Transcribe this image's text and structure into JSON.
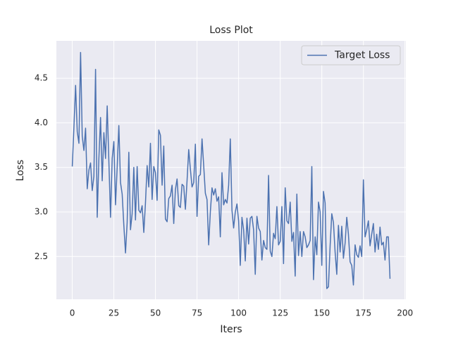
{
  "chart_data": {
    "type": "line",
    "title": "Loss Plot",
    "x_label": "Iters",
    "y_label": "Loss",
    "series": [
      {
        "name": "Target Loss",
        "color": "#4c72b0",
        "values": [
          3.51,
          3.95,
          4.42,
          3.9,
          3.77,
          4.79,
          3.85,
          3.69,
          3.94,
          3.26,
          3.47,
          3.55,
          3.24,
          3.4,
          4.6,
          2.94,
          3.6,
          4.06,
          3.35,
          3.89,
          3.6,
          4.19,
          3.57,
          2.94,
          3.6,
          3.79,
          3.08,
          3.5,
          3.97,
          3.33,
          3.2,
          2.85,
          2.54,
          2.88,
          3.67,
          2.8,
          2.98,
          3.5,
          2.91,
          3.51,
          3.02,
          2.99,
          3.07,
          2.77,
          3.1,
          3.52,
          3.28,
          3.77,
          3.14,
          3.51,
          3.44,
          3.13,
          3.92,
          3.86,
          3.3,
          3.74,
          2.92,
          2.89,
          3.15,
          3.18,
          3.3,
          2.87,
          3.25,
          3.37,
          3.07,
          3.05,
          3.31,
          3.29,
          3.03,
          3.35,
          3.7,
          3.48,
          3.28,
          3.33,
          3.76,
          2.95,
          3.4,
          3.42,
          3.82,
          3.52,
          3.21,
          3.14,
          2.63,
          3.0,
          3.27,
          3.19,
          3.26,
          3.12,
          3.17,
          2.72,
          3.44,
          3.08,
          3.14,
          3.1,
          3.3,
          3.82,
          3.02,
          2.82,
          3.0,
          3.09,
          2.9,
          2.4,
          2.94,
          2.8,
          2.45,
          2.93,
          2.64,
          2.93,
          2.95,
          2.8,
          2.3,
          2.95,
          2.82,
          2.78,
          2.46,
          2.68,
          2.6,
          2.58,
          3.41,
          2.56,
          2.5,
          2.76,
          2.7,
          3.06,
          2.63,
          2.67,
          3.06,
          2.42,
          3.27,
          2.9,
          2.87,
          3.11,
          2.67,
          2.77,
          2.28,
          3.2,
          2.51,
          2.78,
          2.5,
          2.78,
          2.72,
          2.6,
          2.63,
          2.68,
          3.51,
          2.24,
          2.72,
          2.52,
          3.11,
          3.0,
          2.4,
          3.23,
          3.1,
          2.14,
          2.16,
          2.62,
          2.98,
          2.88,
          2.55,
          2.3,
          2.85,
          2.55,
          2.84,
          2.48,
          2.65,
          2.94,
          2.75,
          2.44,
          2.4,
          2.18,
          2.63,
          2.52,
          2.49,
          2.62,
          2.5,
          3.36,
          2.72,
          2.8,
          2.9,
          2.62,
          2.75,
          2.87,
          2.55,
          2.75,
          2.58,
          2.83,
          2.63,
          2.66,
          2.46,
          2.72,
          2.72,
          2.25
        ]
      }
    ],
    "xlim": [
      -9.55,
      200.55
    ],
    "ylim": [
      2.02,
      4.92
    ],
    "xticks": [
      0,
      25,
      50,
      75,
      100,
      125,
      150,
      175,
      200
    ],
    "yticks": [
      2.5,
      {
        "value": 3,
        "label": "3.0"
      },
      3.5,
      {
        "value": 4,
        "label": "4.0"
      },
      4.5
    ],
    "grid": true,
    "legend": "upper right"
  }
}
